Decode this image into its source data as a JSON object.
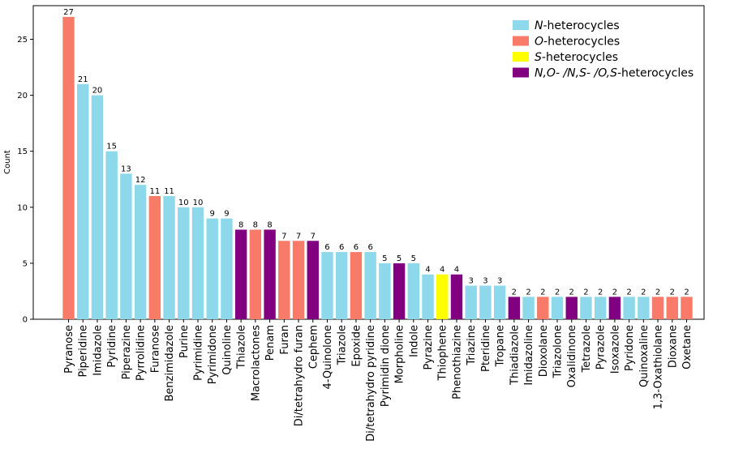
{
  "chart_data": {
    "type": "bar",
    "ylabel": "Count",
    "ylim": [
      0,
      28
    ],
    "yticks": [
      0,
      5,
      10,
      15,
      20,
      25
    ],
    "grid": false,
    "legend_placement": "top-right",
    "colors": {
      "N": "#8dd8ea",
      "O": "#f87a68",
      "S": "#ffff00",
      "mixed": "#800080"
    },
    "legend": [
      {
        "key": "N",
        "italic": "N",
        "rest": "-heterocycles"
      },
      {
        "key": "O",
        "italic": "O",
        "rest": "-heterocycles"
      },
      {
        "key": "S",
        "italic": "S",
        "rest": "-heterocycles"
      },
      {
        "key": "mixed",
        "italic": "N,O- /N,S- /O,S",
        "rest": "-heterocycles"
      }
    ],
    "categories": [
      "Pyranose",
      "Piperidine",
      "Imidazole",
      "Pyridine",
      "Piperazine",
      "Pyrrolidine",
      "Furanose",
      "Benzimidazole",
      "Purine",
      "Pyrimidine",
      "Pyrimidone",
      "Quinoline",
      "Thiazole",
      "Macrolactones",
      "Penam",
      "Furan",
      "Di/tetrahydro furan",
      "Cephem",
      "4-Quinolone",
      "Triazole",
      "Epoxide",
      "Di/tetrahydro pyridine",
      "Pyrimidin dione",
      "Morpholine",
      "Indole",
      "Pyrazine",
      "Thiophene",
      "Phenothiazine",
      "Triazine",
      "Pteridine",
      "Tropane",
      "Thiadiazole",
      "Imidazoline",
      "Dioxolane",
      "Triazolone",
      "Oxalidinone",
      "Tetrazole",
      "Pyrazole",
      "Isoxazole",
      "Pyridone",
      "Quinoxaline",
      "1,3-Oxathiolane",
      "Dioxane",
      "Oxetane"
    ],
    "values": [
      27,
      21,
      20,
      15,
      13,
      12,
      11,
      11,
      10,
      10,
      9,
      9,
      8,
      8,
      8,
      7,
      7,
      7,
      6,
      6,
      6,
      6,
      5,
      5,
      5,
      4,
      4,
      4,
      3,
      3,
      3,
      2,
      2,
      2,
      2,
      2,
      2,
      2,
      2,
      2,
      2,
      2,
      2,
      2
    ],
    "groups": [
      "O",
      "N",
      "N",
      "N",
      "N",
      "N",
      "O",
      "N",
      "N",
      "N",
      "N",
      "N",
      "mixed",
      "O",
      "mixed",
      "O",
      "O",
      "mixed",
      "N",
      "N",
      "O",
      "N",
      "N",
      "mixed",
      "N",
      "N",
      "S",
      "mixed",
      "N",
      "N",
      "N",
      "mixed",
      "N",
      "O",
      "N",
      "mixed",
      "N",
      "N",
      "mixed",
      "N",
      "N",
      "O",
      "O",
      "O"
    ]
  }
}
